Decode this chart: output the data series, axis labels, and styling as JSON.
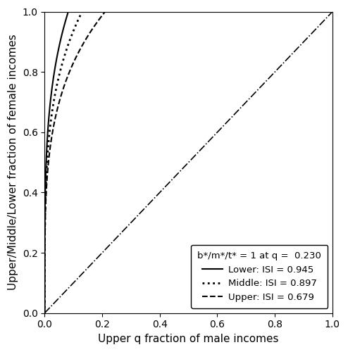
{
  "title": "",
  "xlabel": "Upper q fraction of male incomes",
  "ylabel": "Upper/Middle/Lower fraction of female incomes",
  "xlim": [
    0.0,
    1.0
  ],
  "ylim": [
    0.0,
    1.0
  ],
  "xticks": [
    0.0,
    0.2,
    0.4,
    0.6,
    0.8,
    1.0
  ],
  "yticks": [
    0.0,
    0.2,
    0.4,
    0.6,
    0.8,
    1.0
  ],
  "annotation_text": "b*/m*/t* = 1 at q =  0.230",
  "legend_entries": [
    {
      "label": "Lower: ISI = 0.945",
      "linestyle": "solid"
    },
    {
      "label": "Middle: ISI = 0.897",
      "linestyle": "dotted"
    },
    {
      "label": "Upper: ISI = 0.679",
      "linestyle": "dashed"
    }
  ],
  "curve_lower_power": 0.18,
  "curve_lower_scale": 0.082,
  "curve_middle_power": 0.2,
  "curve_middle_scale": 0.125,
  "curve_upper_power": 0.22,
  "curve_upper_scale": 0.21,
  "background_color": "#ffffff",
  "line_color": "#000000",
  "q_intersection": 0.23
}
